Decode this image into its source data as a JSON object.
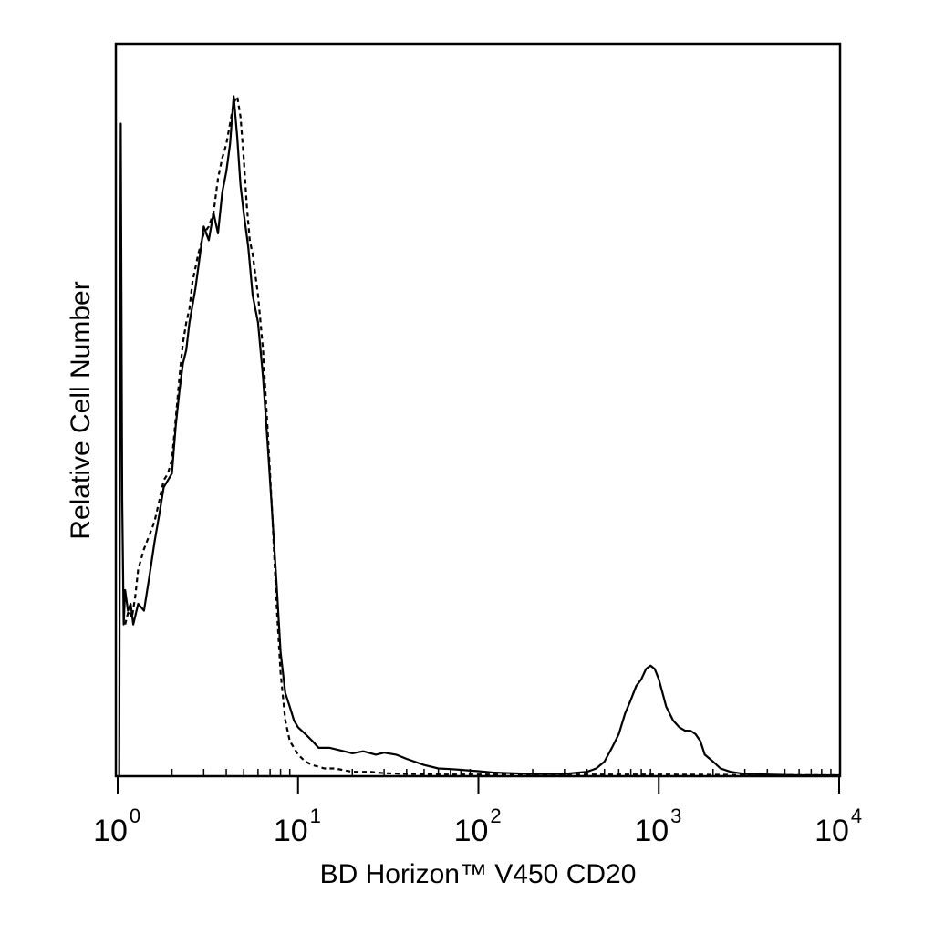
{
  "chart_data": {
    "type": "line",
    "title": "",
    "xlabel": "BD Horizon™ V450 CD20",
    "ylabel": "Relative Cell Number",
    "x_scale": "log",
    "xlim": [
      1,
      10000
    ],
    "ylim": [
      0,
      100
    ],
    "grid": false,
    "x_ticks": [
      {
        "base": "10",
        "exp": "0",
        "value": 1
      },
      {
        "base": "10",
        "exp": "1",
        "value": 10
      },
      {
        "base": "10",
        "exp": "2",
        "value": 100
      },
      {
        "base": "10",
        "exp": "3",
        "value": 1000
      },
      {
        "base": "10",
        "exp": "4",
        "value": 10000
      }
    ],
    "series": [
      {
        "style": "solid",
        "color": "#000000",
        "x": [
          1.02,
          1.04,
          1.06,
          1.08,
          1.1,
          1.14,
          1.18,
          1.22,
          1.3,
          1.4,
          1.5,
          1.6,
          1.7,
          1.8,
          1.9,
          2.0,
          2.1,
          2.2,
          2.3,
          2.4,
          2.5,
          2.7,
          2.9,
          3.0,
          3.2,
          3.4,
          3.6,
          3.8,
          4.0,
          4.2,
          4.4,
          4.6,
          4.8,
          5.0,
          5.3,
          5.6,
          6.0,
          6.4,
          6.8,
          7.2,
          7.6,
          8.0,
          8.5,
          9.0,
          9.5,
          10,
          11,
          12,
          13,
          15,
          18,
          20,
          23,
          27,
          30,
          35,
          40,
          50,
          60,
          70,
          80,
          100,
          120,
          150,
          200,
          300,
          400,
          450,
          500,
          550,
          600,
          650,
          700,
          750,
          800,
          850,
          900,
          950,
          1000,
          1050,
          1100,
          1200,
          1300,
          1400,
          1500,
          1600,
          1700,
          1800,
          2000,
          2200,
          2500,
          2800,
          3000,
          4000,
          6000,
          10000
        ],
        "y": [
          0,
          95,
          40,
          22,
          27,
          24,
          25,
          22,
          25,
          24,
          29,
          34,
          38,
          42,
          43,
          44,
          51,
          56,
          60,
          62,
          66,
          71,
          77,
          80,
          78,
          82,
          79,
          85,
          88,
          92,
          99,
          93,
          86,
          82,
          77,
          70,
          66,
          58,
          48,
          38,
          28,
          18,
          12,
          10,
          8,
          7,
          6,
          5,
          4,
          4,
          3.5,
          3.2,
          3.5,
          3,
          3.3,
          3,
          2.4,
          1.5,
          1,
          0.9,
          0.8,
          0.6,
          0.4,
          0.3,
          0.2,
          0.2,
          0.5,
          1,
          2,
          4,
          6,
          9,
          11,
          13,
          14,
          15.5,
          16,
          15.5,
          14,
          12,
          10,
          8,
          7,
          6.5,
          6.5,
          6,
          5,
          3,
          2,
          1,
          0.5,
          0.3,
          0.2,
          0.1,
          0,
          0
        ]
      },
      {
        "style": "dashed",
        "color": "#000000",
        "x": [
          1.1,
          1.15,
          1.2,
          1.25,
          1.3,
          1.4,
          1.5,
          1.6,
          1.7,
          1.8,
          1.9,
          2.0,
          2.1,
          2.2,
          2.3,
          2.4,
          2.5,
          2.6,
          2.8,
          3.0,
          3.2,
          3.4,
          3.6,
          3.8,
          4.0,
          4.2,
          4.4,
          4.6,
          4.8,
          5.0,
          5.2,
          5.4,
          5.6,
          6.0,
          6.4,
          6.8,
          7.2,
          7.6,
          8.0,
          8.5,
          9.0,
          9.5,
          10,
          11,
          12,
          14,
          16,
          20,
          25,
          30,
          40,
          60,
          100,
          200,
          500,
          1000,
          10000
        ],
        "y": [
          22,
          24,
          23,
          26,
          30,
          33,
          35,
          37,
          40,
          43,
          44,
          46,
          52,
          58,
          63,
          66,
          68,
          72,
          76,
          79,
          80,
          82,
          87,
          90,
          92,
          95,
          98,
          99,
          96,
          90,
          83,
          78,
          76,
          70,
          62,
          50,
          38,
          25,
          15,
          8,
          5,
          4,
          3,
          2,
          1.5,
          1,
          1,
          0.5,
          0.5,
          0.3,
          0.2,
          0.1,
          0.1,
          0.1,
          0.1,
          0.1,
          0
        ]
      }
    ]
  }
}
